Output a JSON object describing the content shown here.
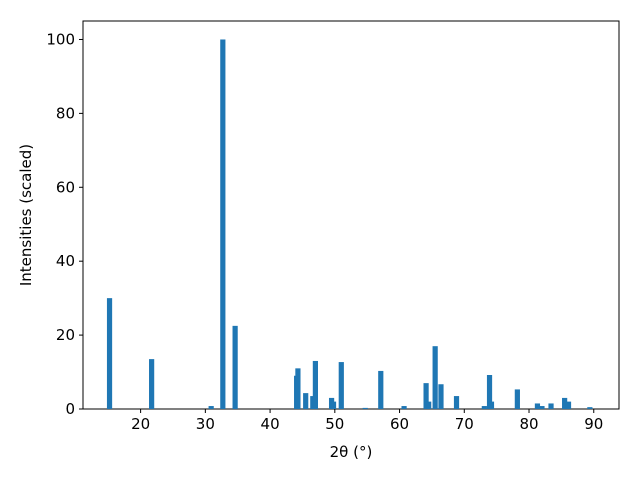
{
  "chart_data": {
    "type": "bar",
    "xlabel": "2θ (°)",
    "ylabel": "Intensities (scaled)",
    "color": "#1f77b4",
    "x": [
      15.2,
      21.7,
      30.9,
      32.7,
      34.6,
      44.1,
      44.3,
      45.5,
      46.6,
      47.0,
      49.5,
      49.8,
      51.0,
      54.7,
      57.1,
      60.7,
      64.1,
      64.5,
      65.5,
      66.4,
      68.8,
      73.1,
      73.9,
      74.2,
      78.2,
      81.3,
      82.0,
      83.4,
      85.5,
      86.1,
      89.4
    ],
    "values": [
      30,
      13.5,
      0.8,
      100,
      22.5,
      9,
      11,
      4.3,
      3.5,
      13,
      3,
      2,
      12.7,
      0.3,
      10.3,
      0.8,
      7,
      2,
      17,
      6.7,
      3.5,
      0.8,
      9.2,
      2,
      5.3,
      1.5,
      0.8,
      1.5,
      3,
      2,
      0.5
    ],
    "xlim": [
      11.1,
      93.9
    ],
    "ylim": [
      0,
      105
    ],
    "xticks": [
      20,
      30,
      40,
      50,
      60,
      70,
      80,
      90
    ],
    "yticks": [
      0,
      20,
      40,
      60,
      80,
      100
    ]
  }
}
